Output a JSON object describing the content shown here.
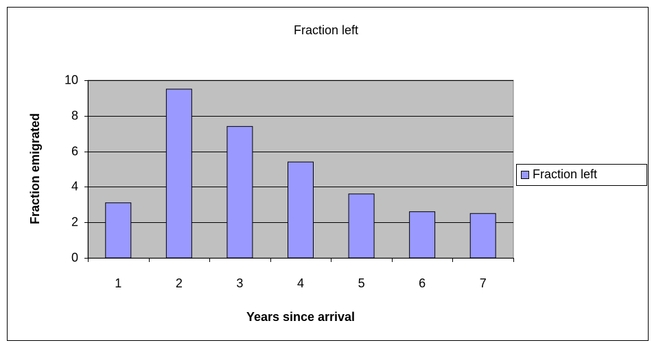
{
  "chart_data": {
    "type": "bar",
    "title": "Fraction  left",
    "x_label": "Years since arrival",
    "y_label": "Fraction emigrated",
    "categories": [
      "1",
      "2",
      "3",
      "4",
      "5",
      "6",
      "7"
    ],
    "series": [
      {
        "name": "Fraction  left",
        "color": "#9999ff",
        "values": [
          3.1,
          9.5,
          7.4,
          5.4,
          3.6,
          2.6,
          2.5
        ]
      }
    ],
    "ylim": [
      0,
      10
    ],
    "yticks": [
      0,
      2,
      4,
      6,
      8,
      10
    ],
    "grid": true,
    "legend": "right"
  }
}
